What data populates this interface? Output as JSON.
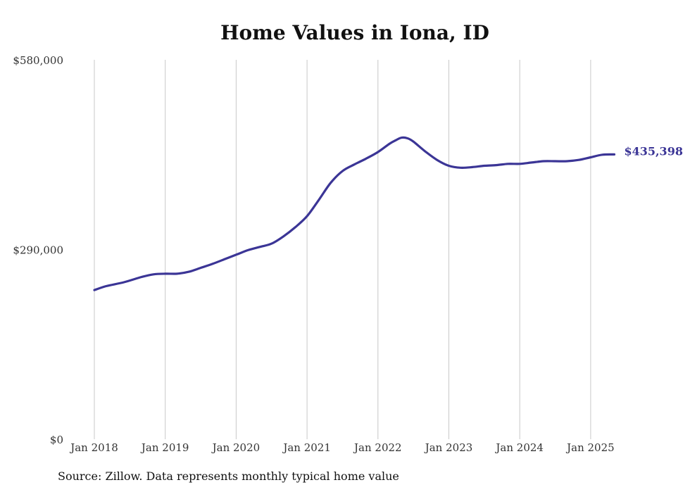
{
  "chart_data": {
    "type": "line",
    "title": "Home Values in Iona, ID",
    "xlabel": "",
    "ylabel": "",
    "ylim": [
      0,
      580000
    ],
    "y_ticks": [
      0,
      290000,
      580000
    ],
    "y_tick_labels": [
      "$0",
      "$290,000",
      "$580,000"
    ],
    "x_ticks": [
      "2018-01",
      "2019-01",
      "2020-01",
      "2021-01",
      "2022-01",
      "2023-01",
      "2024-01",
      "2025-01"
    ],
    "x_tick_labels": [
      "Jan 2018",
      "Jan 2019",
      "Jan 2020",
      "Jan 2021",
      "Jan 2022",
      "Jan 2023",
      "Jan 2024",
      "Jan 2025"
    ],
    "grid": "vertical",
    "series": [
      {
        "color": "#3b3596",
        "end_label": "$435,398",
        "x": [
          "2018-01",
          "2018-03",
          "2018-06",
          "2018-09",
          "2018-11",
          "2019-01",
          "2019-03",
          "2019-05",
          "2019-07",
          "2019-09",
          "2019-11",
          "2020-01",
          "2020-03",
          "2020-05",
          "2020-07",
          "2020-09",
          "2020-11",
          "2021-01",
          "2021-03",
          "2021-05",
          "2021-07",
          "2021-09",
          "2021-11",
          "2022-01",
          "2022-03",
          "2022-04",
          "2022-05",
          "2022-06",
          "2022-07",
          "2022-09",
          "2022-11",
          "2023-01",
          "2023-03",
          "2023-05",
          "2023-07",
          "2023-09",
          "2023-11",
          "2024-01",
          "2024-03",
          "2024-05",
          "2024-07",
          "2024-09",
          "2024-11",
          "2025-01",
          "2025-03",
          "2025-05"
        ],
        "values": [
          228000,
          234000,
          240000,
          248000,
          252000,
          253000,
          253000,
          256000,
          262000,
          268000,
          275000,
          282000,
          289000,
          294000,
          299000,
          310000,
          324000,
          341000,
          366000,
          392000,
          410000,
          420000,
          429000,
          439000,
          452000,
          457000,
          461000,
          460000,
          455000,
          440000,
          427000,
          418000,
          415000,
          416000,
          418000,
          419000,
          421000,
          421000,
          423000,
          425000,
          425000,
          425000,
          427000,
          431000,
          435000,
          435398
        ]
      }
    ],
    "source": "Source: Zillow. Data represents monthly typical home value"
  }
}
